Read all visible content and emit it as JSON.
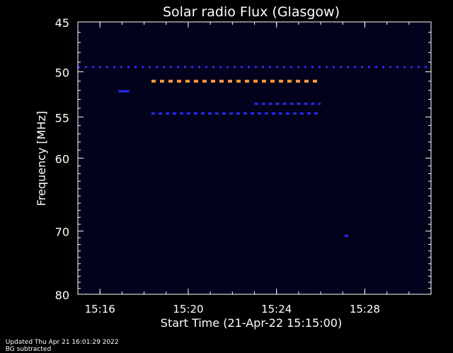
{
  "footer": {
    "updated": "Updated Thu Apr 21 16:01:29 2022",
    "note": "BG subtracted"
  },
  "colors": {
    "background": "#000000",
    "plot_bg": "#02021c",
    "axis": "#ffffff",
    "weak_signal": "#2a2aff",
    "strong_signal": "#ff9a3c"
  },
  "chart_data": {
    "type": "heatmap",
    "title": "Solar radio Flux (Glasgow)",
    "xlabel": "Start Time (21-Apr-22 15:15:00)",
    "ylabel": "Frequency [MHz]",
    "xlim": [
      "15:15:00",
      "15:31:00"
    ],
    "ylim": [
      45,
      80
    ],
    "y_scale": "log, inverted (45 at top, 80 at bottom)",
    "x_ticks": [
      "15:16",
      "15:20",
      "15:24",
      "15:28"
    ],
    "y_ticks": [
      45,
      50,
      55,
      60,
      70,
      80
    ],
    "features": [
      {
        "name": "",
        "freq_mhz": 49.5,
        "t_start": "15:15:00",
        "t_end": "15:31:00",
        "intensity": "weak",
        "pattern": "dashed"
      },
      {
        "name": "",
        "freq_mhz": 51.0,
        "t_start": "15:18:20",
        "t_end": "15:26:00",
        "intensity": "strong",
        "pattern": "dashed"
      },
      {
        "name": "",
        "freq_mhz": 54.6,
        "t_start": "15:18:20",
        "t_end": "15:26:00",
        "intensity": "weak",
        "pattern": "dashed"
      },
      {
        "name": "",
        "freq_mhz": 53.5,
        "t_start": "15:23:00",
        "t_end": "15:26:00",
        "intensity": "weak",
        "pattern": "dashed"
      },
      {
        "name": "",
        "freq_mhz": 52.1,
        "t_start": "15:16:50",
        "t_end": "15:17:20",
        "intensity": "weak",
        "pattern": "solid"
      },
      {
        "name": "",
        "freq_mhz": 70.7,
        "t_start": "15:27:05",
        "t_end": "15:27:15",
        "intensity": "weak",
        "pattern": "solid"
      }
    ]
  }
}
